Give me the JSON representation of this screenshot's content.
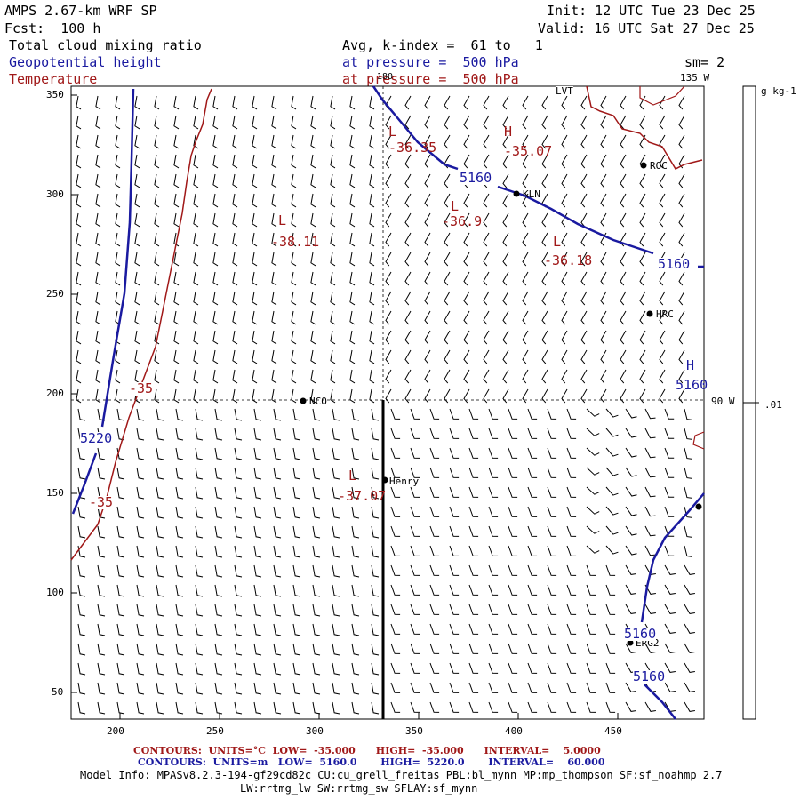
{
  "header": {
    "title": "AMPS 2.67-km WRF SP",
    "forecast": "Fcst:  100 h",
    "init": "Init: 12 UTC Tue 23 Dec 25",
    "valid": "Valid: 16 UTC Sat 27 Dec 25",
    "field1": "Total cloud mixing ratio",
    "field2": "Geopotential height",
    "field3": "Temperature",
    "avg": "Avg, k-index =  61 to   1",
    "pressure1": "at pressure =  500 hPa",
    "pressure2": "at pressure =  500 hPa",
    "sm": "sm= 2"
  },
  "map": {
    "lon_top": "180",
    "lon_135": "135 W",
    "lon_90": "90 W",
    "colorbar_unit": "g kg-1",
    "colorbar_value": ".01",
    "x_ticks": [
      "200",
      "250",
      "300",
      "350",
      "400",
      "450"
    ],
    "y_ticks": [
      "350",
      "300",
      "250",
      "200",
      "150",
      "100",
      "50"
    ],
    "stations": [
      "LVT",
      "ROC",
      "KLN",
      "HRC",
      "NCO",
      "Henry",
      "ERG2"
    ],
    "height_labels": [
      "5160",
      "5160",
      "5160",
      "5160",
      "5160",
      "5220"
    ],
    "temp_labels": [
      "-35",
      "-35"
    ],
    "highs_lows": [
      {
        "sym": "L",
        "val": "-36.35",
        "color": "red"
      },
      {
        "sym": "H",
        "val": "-35.07",
        "color": "red"
      },
      {
        "sym": "L",
        "val": "-36.9",
        "color": "red"
      },
      {
        "sym": "L",
        "val": "-36.18",
        "color": "red"
      },
      {
        "sym": "L",
        "val": "-38.11",
        "color": "red"
      },
      {
        "sym": "L",
        "val": "-37.07",
        "color": "red"
      },
      {
        "sym": "H",
        "val": "",
        "color": "blue"
      }
    ],
    "colors": {
      "temperature": "#a01818",
      "height": "#1a1aa0"
    }
  },
  "footer": {
    "temp_line": "CONTOURS:  UNITS=°C  LOW=  -35.000      HIGH=  -35.000      INTERVAL=    5.0000",
    "height_line": "CONTOURS:  UNITS=m   LOW=  5160.0       HIGH=  5220.0       INTERVAL=    60.000",
    "model_info": "Model Info: MPASv8.2.3-194-gf29cd82c CU:cu_grell_freitas PBL:bl_mynn MP:mp_thompson SF:sf_noahmp 2.7",
    "model_info2": "LW:rrtmg_lw SW:rrtmg_sw SFLAY:sf_mynn"
  }
}
